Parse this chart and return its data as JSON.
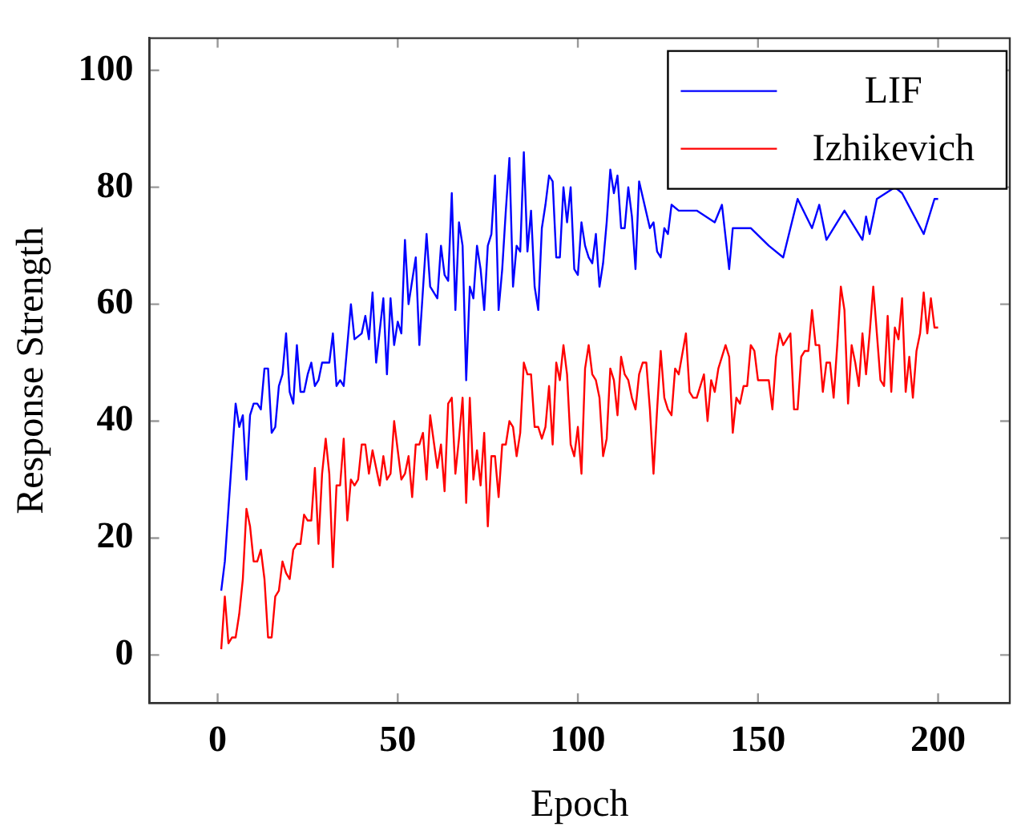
{
  "chart_data": {
    "type": "line",
    "xlabel": "Epoch",
    "ylabel": "Response Strength",
    "xlim": [
      -18.9,
      219.9
    ],
    "ylim": [
      -8.2,
      105.5
    ],
    "xticks": [
      0,
      50,
      100,
      150,
      200
    ],
    "yticks": [
      0,
      20,
      40,
      60,
      80,
      100
    ],
    "grid": false,
    "legend": "top right",
    "marker": "none",
    "line_style": "solid",
    "series": [
      {
        "name": "LIF",
        "color": "#0000ff",
        "x": [
          1,
          2,
          5,
          6,
          7,
          8,
          9,
          10,
          11,
          12,
          13,
          14,
          15,
          16,
          17,
          18,
          19,
          20,
          21,
          22,
          23,
          24,
          25,
          26,
          27,
          28,
          29,
          31,
          32,
          33,
          34,
          35,
          37,
          38,
          40,
          41,
          42,
          43,
          44,
          46,
          47,
          48,
          49,
          50,
          51,
          52,
          53,
          55,
          56,
          58,
          59,
          61,
          62,
          63,
          64,
          65,
          66,
          67,
          68,
          69,
          70,
          71,
          72,
          73,
          74,
          75,
          76,
          77,
          78,
          79,
          80,
          81,
          82,
          83,
          84,
          85,
          86,
          87,
          88,
          89,
          90,
          91,
          92,
          93,
          94,
          95,
          96,
          97,
          98,
          99,
          100,
          101,
          102,
          103,
          104,
          105,
          106,
          107,
          108,
          109,
          110,
          111,
          112,
          113,
          114,
          115,
          116,
          117,
          120,
          121,
          122,
          123,
          124,
          125,
          126,
          128,
          133,
          138,
          140,
          142,
          143,
          148,
          153,
          157,
          161,
          165,
          167,
          169,
          171,
          174,
          179,
          180,
          181,
          183,
          188,
          190,
          196,
          199,
          200
        ],
        "values": [
          11,
          16,
          43,
          39,
          41,
          30,
          41,
          43,
          43,
          42,
          49,
          49,
          38,
          39,
          46,
          48,
          55,
          45,
          43,
          53,
          45,
          45,
          48,
          50,
          46,
          47,
          50,
          50,
          55,
          46,
          47,
          46,
          60,
          54,
          55,
          58,
          54,
          62,
          50,
          61,
          48,
          61,
          53,
          57,
          55,
          71,
          60,
          68,
          53,
          72,
          63,
          61,
          70,
          65,
          64,
          79,
          59,
          74,
          70,
          47,
          63,
          61,
          70,
          66,
          59,
          70,
          72,
          82,
          59,
          66,
          76,
          85,
          63,
          70,
          69,
          86,
          69,
          76,
          63,
          59,
          73,
          77,
          82,
          81,
          68,
          68,
          80,
          74,
          80,
          66,
          65,
          74,
          70,
          68,
          67,
          72,
          63,
          67,
          74,
          83,
          79,
          82,
          73,
          73,
          80,
          75,
          66,
          81,
          73,
          74,
          69,
          68,
          73,
          72,
          77,
          76,
          76,
          74,
          77,
          66,
          73,
          73,
          70,
          68,
          78,
          73,
          77,
          71,
          73,
          76,
          71,
          75,
          72,
          78,
          80,
          79,
          72,
          78,
          78
        ]
      },
      {
        "name": "Izhikevich",
        "color": "#ff0000",
        "x": [
          1,
          2,
          3,
          4,
          5,
          6,
          7,
          8,
          9,
          10,
          11,
          12,
          13,
          14,
          15,
          16,
          17,
          18,
          19,
          20,
          21,
          22,
          23,
          24,
          25,
          26,
          27,
          28,
          29,
          30,
          31,
          32,
          33,
          34,
          35,
          36,
          37,
          38,
          39,
          40,
          41,
          42,
          43,
          44,
          45,
          46,
          47,
          48,
          49,
          50,
          51,
          52,
          53,
          54,
          55,
          56,
          57,
          58,
          59,
          61,
          62,
          63,
          64,
          65,
          66,
          67,
          68,
          69,
          70,
          71,
          72,
          73,
          74,
          75,
          76,
          77,
          78,
          79,
          80,
          81,
          82,
          83,
          84,
          85,
          86,
          87,
          88,
          89,
          90,
          91,
          92,
          93,
          94,
          95,
          96,
          97,
          98,
          99,
          100,
          101,
          102,
          103,
          104,
          105,
          106,
          107,
          108,
          109,
          110,
          111,
          112,
          113,
          114,
          115,
          116,
          117,
          118,
          119,
          120,
          121,
          122,
          123,
          124,
          125,
          126,
          127,
          128,
          130,
          131,
          132,
          133,
          135,
          136,
          137,
          138,
          139,
          141,
          142,
          143,
          144,
          145,
          146,
          147,
          148,
          149,
          150,
          151,
          153,
          154,
          155,
          156,
          157,
          158,
          159,
          160,
          161,
          162,
          163,
          164,
          165,
          166,
          167,
          168,
          169,
          170,
          171,
          172,
          173,
          174,
          175,
          176,
          177,
          178,
          179,
          180,
          181,
          182,
          183,
          184,
          185,
          186,
          187,
          188,
          189,
          190,
          191,
          192,
          193,
          194,
          195,
          196,
          197,
          198,
          199,
          200
        ],
        "values": [
          1,
          10,
          2,
          3,
          3,
          7,
          13,
          25,
          22,
          16,
          16,
          18,
          13,
          3,
          3,
          10,
          11,
          16,
          14,
          13,
          18,
          19,
          19,
          24,
          23,
          23,
          32,
          19,
          31,
          37,
          31,
          15,
          29,
          29,
          37,
          23,
          30,
          29,
          30,
          36,
          36,
          31,
          35,
          32,
          29,
          34,
          30,
          31,
          40,
          35,
          30,
          31,
          34,
          27,
          36,
          36,
          38,
          30,
          41,
          32,
          36,
          28,
          43,
          44,
          31,
          37,
          44,
          26,
          44,
          30,
          35,
          29,
          38,
          22,
          34,
          34,
          27,
          36,
          36,
          40,
          39,
          34,
          38,
          50,
          48,
          48,
          39,
          39,
          37,
          39,
          46,
          36,
          50,
          47,
          53,
          48,
          36,
          34,
          39,
          31,
          49,
          53,
          48,
          47,
          44,
          34,
          37,
          49,
          47,
          41,
          51,
          48,
          47,
          44,
          42,
          48,
          50,
          50,
          42,
          31,
          42,
          52,
          44,
          42,
          41,
          49,
          48,
          55,
          45,
          44,
          44,
          48,
          40,
          47,
          45,
          49,
          53,
          51,
          38,
          44,
          43,
          46,
          46,
          53,
          52,
          47,
          47,
          47,
          42,
          51,
          55,
          53,
          54,
          55,
          42,
          42,
          51,
          52,
          52,
          59,
          53,
          53,
          45,
          50,
          50,
          44,
          53,
          63,
          59,
          43,
          53,
          50,
          46,
          55,
          48,
          55,
          63,
          55,
          47,
          46,
          58,
          45,
          56,
          54,
          61,
          45,
          51,
          44,
          52,
          55,
          62,
          55,
          61,
          56,
          56
        ]
      }
    ]
  }
}
